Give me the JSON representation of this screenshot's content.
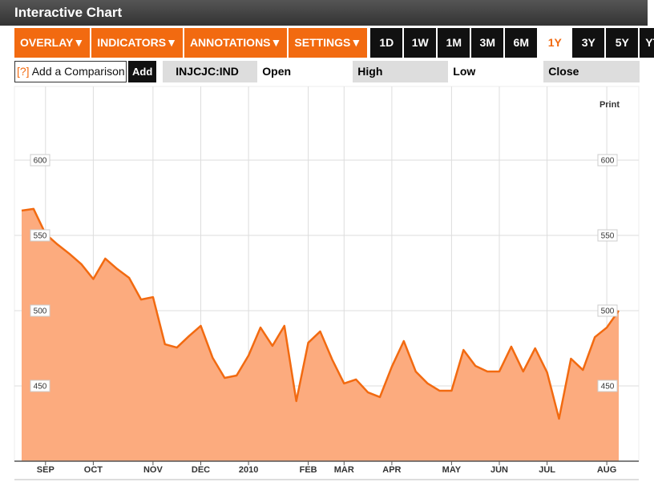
{
  "header": {
    "title": "Interactive Chart"
  },
  "toolbar": {
    "menus": [
      "OVERLAY",
      "INDICATORS",
      "ANNOTATIONS",
      "SETTINGS"
    ],
    "arrow": "▼",
    "ranges": [
      "1D",
      "1W",
      "1M",
      "3M",
      "6M",
      "1Y",
      "3Y",
      "5Y",
      "YTD"
    ],
    "active_range": "1Y"
  },
  "comparison": {
    "help": "[?]",
    "placeholder": "Add a Comparison",
    "add": "Add",
    "symbol": "INJCJC:IND",
    "fields": [
      "Open",
      "High",
      "Low",
      "Close"
    ]
  },
  "print": "Print",
  "chart_data": {
    "type": "area",
    "categories": [
      null,
      null,
      "SEP",
      null,
      null,
      null,
      "OCT",
      null,
      null,
      null,
      null,
      "NOV",
      null,
      null,
      null,
      "DEC",
      null,
      null,
      null,
      "2010",
      null,
      null,
      null,
      null,
      "FEB",
      null,
      null,
      "MAR",
      null,
      null,
      null,
      "APR",
      null,
      null,
      null,
      null,
      "MAY",
      null,
      null,
      null,
      "JUN",
      null,
      null,
      null,
      "JUL",
      null,
      null,
      null,
      null,
      "AUG",
      null
    ],
    "values": [
      566.5,
      567.6,
      551,
      544,
      537.8,
      530.9,
      521,
      534.6,
      527.7,
      521.8,
      507.4,
      509,
      477.7,
      475.5,
      483,
      489.9,
      468.6,
      455.3,
      456.9,
      470.2,
      488.8,
      476.6,
      489.9,
      439.9,
      478.7,
      486.2,
      467.6,
      451.6,
      454.3,
      445.7,
      442.6,
      462.8,
      479.8,
      459.6,
      451.6,
      446.8,
      446.8,
      473.9,
      463.3,
      459.6,
      459.6,
      476.1,
      459.6,
      475,
      459,
      428.2,
      468.1,
      460.6,
      482.4,
      488.8,
      500
    ],
    "color": "#f26a10",
    "fill": "#fcab7e",
    "ylim": [
      400,
      650
    ],
    "yticks": [
      450,
      500,
      550,
      600
    ],
    "grid": true
  }
}
